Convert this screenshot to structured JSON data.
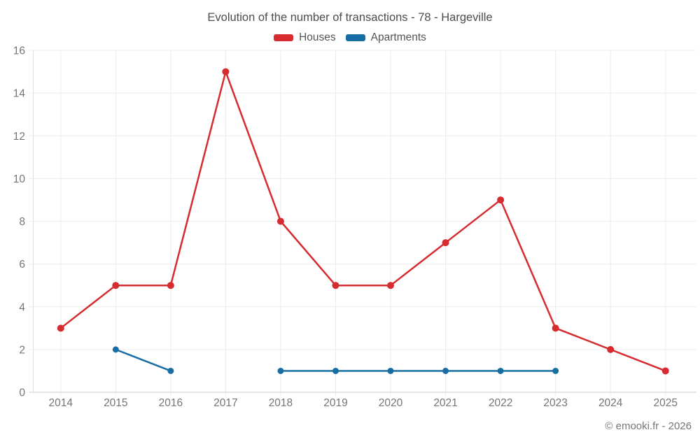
{
  "chart_data": {
    "type": "line",
    "title": "Evolution of the number of transactions - 78 - Hargeville",
    "categories": [
      "2014",
      "2015",
      "2016",
      "2017",
      "2018",
      "2019",
      "2020",
      "2021",
      "2022",
      "2023",
      "2024",
      "2025"
    ],
    "series": [
      {
        "name": "Houses",
        "color": "#d62b2f",
        "marker_radius": 5,
        "values": [
          3,
          5,
          5,
          15,
          8,
          5,
          5,
          7,
          9,
          3,
          2,
          1
        ]
      },
      {
        "name": "Apartments",
        "color": "#176da4",
        "marker_radius": 4.5,
        "values": [
          null,
          2,
          1,
          null,
          1,
          1,
          1,
          1,
          1,
          1,
          null,
          null
        ]
      }
    ],
    "xlabel": "",
    "ylabel": "",
    "ylim": [
      0,
      16
    ],
    "yticks": [
      0,
      2,
      4,
      6,
      8,
      10,
      12,
      14,
      16
    ],
    "grid": true,
    "legend_position": "top"
  },
  "footer": {
    "copyright": "© emooki.fr - 2026"
  },
  "style": {
    "grid_color": "#ececec",
    "axis_line_color": "#e0e0e0",
    "zero_line_color": "#c9c9c9",
    "tick_label_color": "#757575",
    "tick_font_size": 15.5
  }
}
